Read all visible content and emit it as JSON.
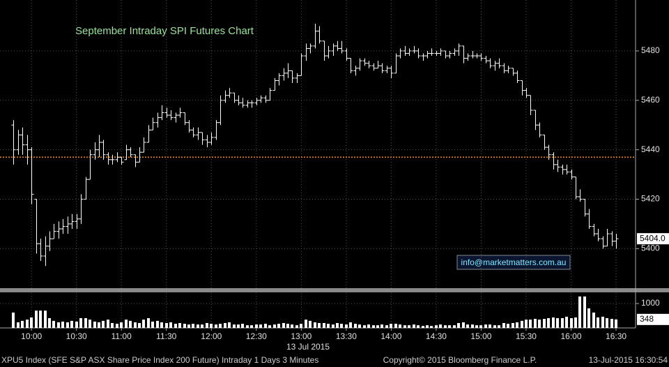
{
  "chart_data": {
    "type": "ohlc",
    "title": "September Intraday SPI Futures Chart",
    "watermark": "info@marketmatters.com.au",
    "date_label": "13 Jul 2015",
    "color": "#ffffff",
    "grid": true,
    "x": [
      "09:48",
      "09:51",
      "09:54",
      "09:57",
      "10:00",
      "10:03",
      "10:06",
      "10:09",
      "10:12",
      "10:15",
      "10:18",
      "10:21",
      "10:24",
      "10:27",
      "10:30",
      "10:33",
      "10:36",
      "10:39",
      "10:42",
      "10:45",
      "10:48",
      "10:51",
      "10:54",
      "10:57",
      "11:00",
      "11:03",
      "11:06",
      "11:09",
      "11:12",
      "11:15",
      "11:18",
      "11:21",
      "11:24",
      "11:27",
      "11:30",
      "11:33",
      "11:36",
      "11:39",
      "11:42",
      "11:45",
      "11:48",
      "11:51",
      "11:54",
      "11:57",
      "12:00",
      "12:03",
      "12:06",
      "12:09",
      "12:12",
      "12:15",
      "12:18",
      "12:21",
      "12:24",
      "12:27",
      "12:30",
      "12:33",
      "12:36",
      "12:39",
      "12:42",
      "12:45",
      "12:48",
      "12:51",
      "12:54",
      "12:57",
      "13:00",
      "13:03",
      "13:06",
      "13:09",
      "13:12",
      "13:15",
      "13:18",
      "13:21",
      "13:24",
      "13:27",
      "13:30",
      "13:33",
      "13:36",
      "13:39",
      "13:42",
      "13:45",
      "13:48",
      "13:51",
      "13:54",
      "13:57",
      "14:00",
      "14:03",
      "14:06",
      "14:09",
      "14:12",
      "14:15",
      "14:18",
      "14:21",
      "14:24",
      "14:27",
      "14:30",
      "14:33",
      "14:36",
      "14:39",
      "14:42",
      "14:45",
      "14:48",
      "14:51",
      "14:54",
      "14:57",
      "15:00",
      "15:03",
      "15:06",
      "15:09",
      "15:12",
      "15:15",
      "15:18",
      "15:21",
      "15:24",
      "15:27",
      "15:30",
      "15:33",
      "15:36",
      "15:39",
      "15:42",
      "15:45",
      "15:48",
      "15:51",
      "15:54",
      "15:57",
      "16:00",
      "16:03",
      "16:06",
      "16:09",
      "16:12",
      "16:15",
      "16:18",
      "16:21",
      "16:24",
      "16:27",
      "16:30"
    ],
    "open": [
      5450,
      5440,
      5446,
      5442,
      5440,
      5420,
      5402,
      5397,
      5401,
      5404,
      5407,
      5408,
      5409,
      5410,
      5411,
      5412,
      5420,
      5428,
      5438,
      5440,
      5443,
      5438,
      5436,
      5436,
      5437,
      5436,
      5440,
      5438,
      5435,
      5439,
      5443,
      5448,
      5451,
      5453,
      5455,
      5454,
      5453,
      5454,
      5455,
      5451,
      5448,
      5446,
      5447,
      5444,
      5443,
      5445,
      5451,
      5460,
      5462,
      5463,
      5460,
      5459,
      5458,
      5459,
      5459,
      5460,
      5461,
      5460,
      5464,
      5468,
      5470,
      5471,
      5472,
      5469,
      5470,
      5478,
      5481,
      5482,
      5488,
      5484,
      5478,
      5480,
      5482,
      5481,
      5480,
      5477,
      5472,
      5473,
      5476,
      5475,
      5474,
      5473,
      5474,
      5472,
      5473,
      5471,
      5478,
      5480,
      5479,
      5480,
      5480,
      5478,
      5478,
      5479,
      5479,
      5479,
      5480,
      5478,
      5479,
      5480,
      5482,
      5477,
      5478,
      5478,
      5478,
      5477,
      5476,
      5474,
      5475,
      5474,
      5472,
      5473,
      5471,
      5468,
      5464,
      5462,
      5456,
      5450,
      5446,
      5441,
      5438,
      5434,
      5433,
      5432,
      5431,
      5429,
      5421,
      5420,
      5414,
      5409,
      5406,
      5404,
      5401,
      5406,
      5403
    ],
    "high": [
      5452,
      5448,
      5449,
      5446,
      5441,
      5420,
      5404,
      5405,
      5407,
      5410,
      5411,
      5412,
      5413,
      5414,
      5414,
      5422,
      5429,
      5440,
      5443,
      5446,
      5444,
      5439,
      5438,
      5439,
      5437,
      5442,
      5441,
      5438,
      5441,
      5445,
      5450,
      5453,
      5455,
      5458,
      5457,
      5456,
      5455,
      5457,
      5455,
      5452,
      5449,
      5449,
      5447,
      5446,
      5447,
      5452,
      5462,
      5464,
      5465,
      5463,
      5462,
      5461,
      5460,
      5460,
      5461,
      5462,
      5462,
      5465,
      5469,
      5471,
      5473,
      5475,
      5472,
      5471,
      5479,
      5483,
      5483,
      5491,
      5490,
      5484,
      5482,
      5483,
      5484,
      5484,
      5481,
      5477,
      5474,
      5477,
      5477,
      5476,
      5475,
      5476,
      5475,
      5474,
      5474,
      5479,
      5481,
      5482,
      5481,
      5482,
      5481,
      5479,
      5480,
      5481,
      5480,
      5481,
      5480,
      5480,
      5481,
      5483,
      5482,
      5479,
      5480,
      5479,
      5479,
      5478,
      5477,
      5476,
      5477,
      5475,
      5474,
      5473,
      5472,
      5468,
      5465,
      5462,
      5456,
      5451,
      5446,
      5442,
      5439,
      5436,
      5434,
      5434,
      5432,
      5429,
      5424,
      5420,
      5416,
      5410,
      5408,
      5405,
      5408,
      5407,
      5406
    ],
    "low": [
      5434,
      5438,
      5438,
      5434,
      5418,
      5398,
      5395,
      5393,
      5399,
      5404,
      5404,
      5406,
      5406,
      5408,
      5408,
      5410,
      5420,
      5428,
      5436,
      5437,
      5436,
      5434,
      5434,
      5435,
      5434,
      5436,
      5437,
      5433,
      5435,
      5439,
      5443,
      5448,
      5449,
      5452,
      5453,
      5452,
      5451,
      5453,
      5450,
      5447,
      5445,
      5444,
      5442,
      5441,
      5442,
      5444,
      5450,
      5459,
      5461,
      5459,
      5458,
      5457,
      5457,
      5457,
      5458,
      5459,
      5459,
      5460,
      5464,
      5466,
      5468,
      5469,
      5467,
      5467,
      5470,
      5476,
      5479,
      5481,
      5483,
      5476,
      5477,
      5478,
      5480,
      5479,
      5476,
      5471,
      5470,
      5472,
      5474,
      5473,
      5472,
      5473,
      5471,
      5471,
      5469,
      5471,
      5477,
      5478,
      5478,
      5479,
      5477,
      5476,
      5477,
      5478,
      5478,
      5478,
      5477,
      5477,
      5478,
      5478,
      5475,
      5476,
      5477,
      5477,
      5476,
      5475,
      5473,
      5472,
      5473,
      5471,
      5471,
      5470,
      5467,
      5462,
      5461,
      5454,
      5448,
      5445,
      5440,
      5436,
      5432,
      5431,
      5430,
      5430,
      5428,
      5420,
      5419,
      5413,
      5408,
      5405,
      5403,
      5400,
      5401,
      5401,
      5400
    ],
    "close": [
      5440,
      5446,
      5442,
      5440,
      5422,
      5402,
      5397,
      5401,
      5404,
      5407,
      5408,
      5409,
      5410,
      5411,
      5412,
      5420,
      5428,
      5438,
      5440,
      5443,
      5438,
      5436,
      5436,
      5437,
      5435,
      5440,
      5438,
      5435,
      5439,
      5443,
      5448,
      5451,
      5453,
      5455,
      5454,
      5453,
      5454,
      5455,
      5451,
      5448,
      5446,
      5447,
      5444,
      5443,
      5445,
      5451,
      5460,
      5462,
      5463,
      5460,
      5459,
      5458,
      5459,
      5459,
      5460,
      5461,
      5460,
      5464,
      5468,
      5470,
      5471,
      5472,
      5469,
      5470,
      5478,
      5481,
      5482,
      5488,
      5484,
      5478,
      5480,
      5482,
      5481,
      5480,
      5477,
      5472,
      5473,
      5476,
      5475,
      5474,
      5473,
      5474,
      5472,
      5473,
      5471,
      5478,
      5480,
      5479,
      5480,
      5480,
      5478,
      5478,
      5479,
      5479,
      5479,
      5480,
      5478,
      5479,
      5480,
      5482,
      5477,
      5478,
      5478,
      5478,
      5477,
      5476,
      5474,
      5475,
      5474,
      5472,
      5473,
      5471,
      5468,
      5464,
      5462,
      5456,
      5450,
      5446,
      5441,
      5438,
      5434,
      5433,
      5432,
      5431,
      5429,
      5421,
      5420,
      5414,
      5409,
      5406,
      5404,
      5401,
      5406,
      5403,
      5404
    ],
    "xlim": [
      "09:39",
      "16:43"
    ],
    "xticks": [
      "10:00",
      "10:30",
      "11:00",
      "11:30",
      "12:00",
      "12:30",
      "13:00",
      "13:30",
      "14:00",
      "14:30",
      "15:00",
      "15:30",
      "16:00",
      "16:30"
    ],
    "ylim": [
      5384,
      5500.6
    ],
    "yticks": [
      5400,
      5420,
      5440,
      5460,
      5480
    ],
    "reference_line": 5437,
    "reference_color": "#f08a1c",
    "last_price": {
      "value": 5404,
      "label": "5404.0"
    },
    "volume": {
      "color": "#ffffff",
      "values": [
        630,
        230,
        290,
        340,
        430,
        710,
        710,
        710,
        400,
        290,
        230,
        260,
        230,
        290,
        260,
        400,
        400,
        340,
        260,
        230,
        290,
        340,
        200,
        170,
        230,
        340,
        290,
        230,
        200,
        340,
        400,
        260,
        290,
        230,
        200,
        230,
        170,
        200,
        170,
        140,
        170,
        140,
        140,
        200,
        170,
        140,
        170,
        200,
        230,
        140,
        140,
        170,
        110,
        110,
        140,
        140,
        170,
        110,
        140,
        170,
        200,
        170,
        140,
        110,
        170,
        340,
        290,
        230,
        200,
        200,
        170,
        140,
        200,
        170,
        140,
        230,
        170,
        140,
        110,
        140,
        110,
        110,
        140,
        110,
        170,
        170,
        140,
        110,
        110,
        140,
        110,
        80,
        110,
        80,
        110,
        140,
        110,
        110,
        110,
        200,
        230,
        140,
        140,
        110,
        110,
        140,
        140,
        110,
        110,
        200,
        170,
        200,
        230,
        290,
        340,
        340,
        370,
        340,
        370,
        400,
        430,
        400,
        400,
        460,
        400,
        430,
        1290,
        1290,
        800,
        630,
        430,
        460,
        400,
        370,
        348
      ],
      "ylim": [
        0,
        1430
      ],
      "yticks": [
        1000
      ],
      "last_value": 348
    }
  },
  "footer": {
    "left": "XPU5 Index (SFE S&P ASX Share Price Index 200 Future) Intraday 1 Days 3 Minutes",
    "center": "Copyright© 2015 Bloomberg Finance L.P.",
    "right": "13-Jul-2015 16:30:54"
  }
}
